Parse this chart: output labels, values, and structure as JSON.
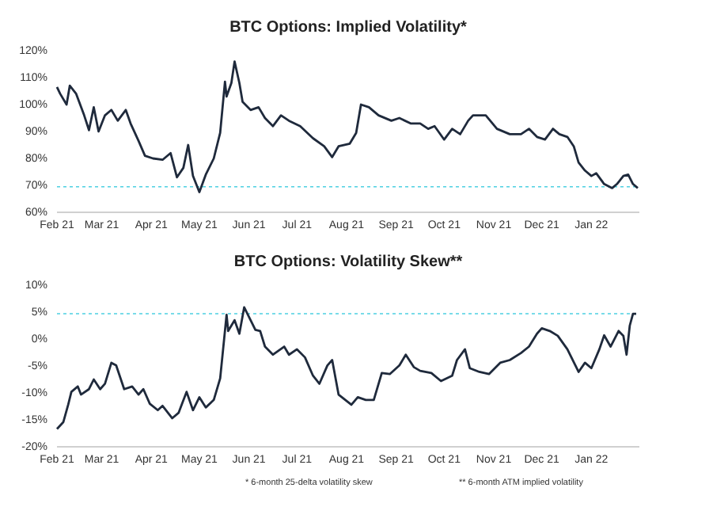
{
  "chart_data": [
    {
      "type": "line",
      "title": "BTC Options: Implied Volatility*",
      "xlim": [
        "2021-02-01",
        "2022-01-31"
      ],
      "xticks": [
        {
          "value": "2021-02",
          "label": "Feb 21"
        },
        {
          "value": "2021-03",
          "label": "Mar 21"
        },
        {
          "value": "2021-04",
          "label": "Apr 21"
        },
        {
          "value": "2021-05",
          "label": "May 21"
        },
        {
          "value": "2021-06",
          "label": "Jun 21"
        },
        {
          "value": "2021-07",
          "label": "Jul 21"
        },
        {
          "value": "2021-08",
          "label": "Aug 21"
        },
        {
          "value": "2021-09",
          "label": "Sep 21"
        },
        {
          "value": "2021-10",
          "label": "Oct 21"
        },
        {
          "value": "2021-11",
          "label": "Nov 21"
        },
        {
          "value": "2021-12",
          "label": "Dec 21"
        },
        {
          "value": "2022-01",
          "label": "Jan 22"
        }
      ],
      "ylim": [
        60,
        120
      ],
      "yticks": [
        {
          "value": 60,
          "label": "60%"
        },
        {
          "value": 70,
          "label": "70%"
        },
        {
          "value": 80,
          "label": "80%"
        },
        {
          "value": 90,
          "label": "90%"
        },
        {
          "value": 100,
          "label": "100%"
        },
        {
          "value": 110,
          "label": "110%"
        },
        {
          "value": 120,
          "label": "120%"
        }
      ],
      "grid": false,
      "marker": "none",
      "line_style": "solid",
      "ref_lines": [
        {
          "axis": "y",
          "value": 69.5,
          "color": "#4dd0e1",
          "line_style": "dotted"
        }
      ],
      "series": [
        {
          "color": "#1f2a3c",
          "x": [
            "2021-02-01",
            "2021-02-03",
            "2021-02-07",
            "2021-02-09",
            "2021-02-13",
            "2021-02-18",
            "2021-02-21",
            "2021-02-24",
            "2021-02-27",
            "2021-03-03",
            "2021-03-07",
            "2021-03-11",
            "2021-03-16",
            "2021-03-19",
            "2021-03-24",
            "2021-03-28",
            "2021-04-02",
            "2021-04-08",
            "2021-04-13",
            "2021-04-17",
            "2021-04-21",
            "2021-04-24",
            "2021-04-27",
            "2021-05-01",
            "2021-05-05",
            "2021-05-10",
            "2021-05-14",
            "2021-05-17",
            "2021-05-18",
            "2021-05-21",
            "2021-05-23",
            "2021-05-26",
            "2021-05-28",
            "2021-06-02",
            "2021-06-07",
            "2021-06-11",
            "2021-06-16",
            "2021-06-21",
            "2021-06-26",
            "2021-07-03",
            "2021-07-11",
            "2021-07-18",
            "2021-07-23",
            "2021-07-27",
            "2021-08-03",
            "2021-08-07",
            "2021-08-10",
            "2021-08-15",
            "2021-08-21",
            "2021-08-29",
            "2021-09-03",
            "2021-09-10",
            "2021-09-16",
            "2021-09-21",
            "2021-09-25",
            "2021-10-01",
            "2021-10-06",
            "2021-10-11",
            "2021-10-16",
            "2021-10-19",
            "2021-10-27",
            "2021-11-03",
            "2021-11-11",
            "2021-11-18",
            "2021-11-23",
            "2021-11-28",
            "2021-12-03",
            "2021-12-08",
            "2021-12-12",
            "2021-12-17",
            "2021-12-21",
            "2021-12-24",
            "2021-12-28",
            "2022-01-01",
            "2022-01-04",
            "2022-01-09",
            "2022-01-14",
            "2022-01-17",
            "2022-01-21",
            "2022-01-24",
            "2022-01-27",
            "2022-01-30"
          ],
          "values": [
            106.5,
            104,
            100,
            107,
            104,
            96,
            90.5,
            99,
            90,
            96,
            98,
            94,
            98,
            93,
            86.5,
            81,
            80,
            79.5,
            82,
            73,
            76.5,
            85,
            73.5,
            67.5,
            74,
            80,
            89.5,
            108.5,
            103,
            108,
            116,
            108,
            101,
            98,
            99,
            95,
            92,
            96,
            94,
            92,
            87.5,
            84.5,
            80.5,
            84.5,
            85.5,
            89.5,
            100,
            99,
            96,
            94,
            95,
            93,
            93,
            91,
            92,
            87,
            91,
            89,
            94,
            96,
            96,
            91,
            89,
            89,
            91,
            88,
            87,
            91,
            89,
            88,
            84.5,
            78.5,
            75.5,
            73.5,
            74.5,
            70.5,
            69,
            70.5,
            73.5,
            74,
            70.5,
            69
          ]
        }
      ]
    },
    {
      "type": "line",
      "title": "BTC Options: Volatility Skew**",
      "xlim": [
        "2021-02-01",
        "2022-01-31"
      ],
      "xticks": [
        {
          "value": "2021-02",
          "label": "Feb 21"
        },
        {
          "value": "2021-03",
          "label": "Mar 21"
        },
        {
          "value": "2021-04",
          "label": "Apr 21"
        },
        {
          "value": "2021-05",
          "label": "May 21"
        },
        {
          "value": "2021-06",
          "label": "Jun 21"
        },
        {
          "value": "2021-07",
          "label": "Jul 21"
        },
        {
          "value": "2021-08",
          "label": "Aug 21"
        },
        {
          "value": "2021-09",
          "label": "Sep 21"
        },
        {
          "value": "2021-10",
          "label": "Oct 21"
        },
        {
          "value": "2021-11",
          "label": "Nov 21"
        },
        {
          "value": "2021-12",
          "label": "Dec 21"
        },
        {
          "value": "2022-01",
          "label": "Jan 22"
        }
      ],
      "ylim": [
        -20,
        10
      ],
      "yticks": [
        {
          "value": -20,
          "label": "-20%"
        },
        {
          "value": -15,
          "label": "-15%"
        },
        {
          "value": -10,
          "label": "-10%"
        },
        {
          "value": -5,
          "label": "-5%"
        },
        {
          "value": 0,
          "label": "0%"
        },
        {
          "value": 5,
          "label": "5%"
        },
        {
          "value": 10,
          "label": "10%"
        }
      ],
      "grid": false,
      "marker": "none",
      "line_style": "solid",
      "ref_lines": [
        {
          "axis": "y",
          "value": 4.7,
          "color": "#4dd0e1",
          "line_style": "dotted"
        }
      ],
      "annotations": [
        "* 6-month 25-delta volatility skew",
        "** 6-month ATM implied volatility"
      ],
      "series": [
        {
          "color": "#1f2a3c",
          "x": [
            "2021-02-01",
            "2021-02-05",
            "2021-02-08",
            "2021-02-10",
            "2021-02-14",
            "2021-02-16",
            "2021-02-21",
            "2021-02-24",
            "2021-02-28",
            "2021-03-03",
            "2021-03-07",
            "2021-03-10",
            "2021-03-15",
            "2021-03-20",
            "2021-03-24",
            "2021-03-27",
            "2021-03-31",
            "2021-04-05",
            "2021-04-08",
            "2021-04-14",
            "2021-04-18",
            "2021-04-23",
            "2021-04-27",
            "2021-05-01",
            "2021-05-05",
            "2021-05-10",
            "2021-05-14",
            "2021-05-18",
            "2021-05-19",
            "2021-05-23",
            "2021-05-26",
            "2021-05-29",
            "2021-06-02",
            "2021-06-05",
            "2021-06-08",
            "2021-06-11",
            "2021-06-16",
            "2021-06-23",
            "2021-06-26",
            "2021-07-01",
            "2021-07-06",
            "2021-07-11",
            "2021-07-15",
            "2021-07-20",
            "2021-07-23",
            "2021-07-27",
            "2021-08-04",
            "2021-08-08",
            "2021-08-13",
            "2021-08-18",
            "2021-08-23",
            "2021-08-28",
            "2021-09-03",
            "2021-09-07",
            "2021-09-12",
            "2021-09-16",
            "2021-09-23",
            "2021-09-29",
            "2021-10-06",
            "2021-10-09",
            "2021-10-14",
            "2021-10-17",
            "2021-10-23",
            "2021-10-29",
            "2021-11-05",
            "2021-11-11",
            "2021-11-18",
            "2021-11-23",
            "2021-11-28",
            "2021-12-01",
            "2021-12-06",
            "2021-12-11",
            "2021-12-17",
            "2021-12-24",
            "2021-12-28",
            "2022-01-01",
            "2022-01-06",
            "2022-01-09",
            "2022-01-13",
            "2022-01-18",
            "2022-01-21",
            "2022-01-23",
            "2022-01-25",
            "2022-01-27",
            "2022-01-29"
          ],
          "values": [
            -16.7,
            -15.4,
            -12.2,
            -9.8,
            -8.8,
            -10.3,
            -9.3,
            -7.5,
            -9.3,
            -8.3,
            -4.4,
            -4.9,
            -9.3,
            -8.8,
            -10.3,
            -9.3,
            -12,
            -13.2,
            -12.4,
            -14.7,
            -13.7,
            -9.8,
            -13.2,
            -10.8,
            -12.7,
            -11.3,
            -7.3,
            4.5,
            1.5,
            3.5,
            1,
            5.9,
            3.5,
            1.7,
            1.5,
            -1.4,
            -2.9,
            -1.4,
            -2.9,
            -1.9,
            -3.4,
            -6.8,
            -8.3,
            -4.9,
            -3.9,
            -10.3,
            -12.2,
            -10.8,
            -11.3,
            -11.3,
            -6.3,
            -6.5,
            -4.9,
            -2.9,
            -5.2,
            -5.9,
            -6.3,
            -7.8,
            -6.8,
            -3.9,
            -1.9,
            -5.4,
            -6.1,
            -6.5,
            -4.4,
            -3.9,
            -2.6,
            -1.4,
            1,
            2,
            1.5,
            0.6,
            -1.9,
            -6.1,
            -4.4,
            -5.4,
            -1.9,
            0.7,
            -1.4,
            1.5,
            0.6,
            -2.9,
            2.5,
            4.7,
            4.7
          ]
        }
      ]
    }
  ]
}
